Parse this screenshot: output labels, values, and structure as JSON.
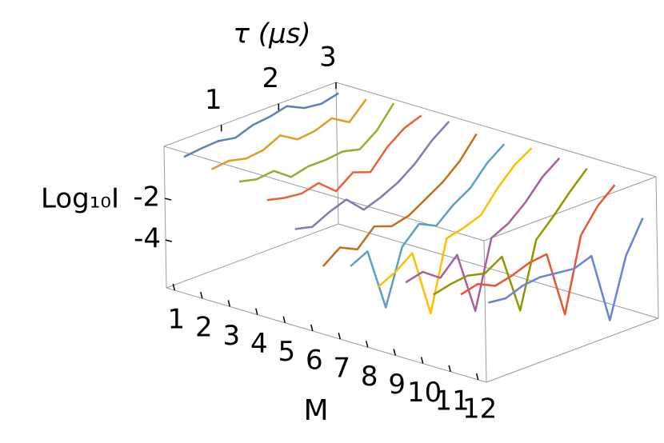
{
  "chart_data": {
    "type": "line3d",
    "x_label": "τ (μs)",
    "y_label": "M",
    "z_label": "Log₁₀I",
    "x": [
      0.2,
      0.5,
      0.8,
      1.1,
      1.4,
      1.7,
      2.0,
      2.3,
      2.6,
      2.9
    ],
    "xlim": [
      0,
      3
    ],
    "xticks": [
      1,
      2,
      3
    ],
    "categories": [
      "1",
      "2",
      "3",
      "4",
      "5",
      "6",
      "7",
      "8",
      "9",
      "10",
      "11",
      "12"
    ],
    "zlim": [
      -6.3,
      0.5
    ],
    "zticks": [
      -2,
      -4
    ],
    "series": [
      {
        "color": "#5e81b5",
        "values": [
          -0.1,
          0,
          0.05,
          -0.1,
          0.2,
          0.3,
          0.5,
          0.1,
          0.0,
          0.2
        ]
      },
      {
        "color": "#e19c24",
        "values": [
          -0.3,
          -0.2,
          -0.4,
          -0.3,
          0.1,
          -0.4,
          -0.3,
          0.0,
          -0.5,
          0.3
        ]
      },
      {
        "color": "#8fb032",
        "values": [
          -0.5,
          -0.7,
          -0.6,
          -1.2,
          -1.0,
          -1.0,
          -0.9,
          -1.1,
          -0.5,
          0.5
        ]
      },
      {
        "color": "#eb6235",
        "values": [
          -1.0,
          -1.2,
          -1.3,
          -1.1,
          -1.8,
          -1.2,
          -1.5,
          -0.6,
          0.0,
          0.3
        ]
      },
      {
        "color": "#8778b3",
        "values": [
          -2.0,
          -2.2,
          -1.8,
          -1.5,
          -2.3,
          -2.0,
          -1.6,
          -1.0,
          -0.2,
          0.4
        ]
      },
      {
        "color": "#c56e1a",
        "values": [
          -3.4,
          -2.8,
          -3.2,
          -2.4,
          -2.7,
          -2.5,
          -2.0,
          -1.5,
          -0.8,
          0.2
        ]
      },
      {
        "color": "#5d9ec7",
        "values": [
          -3.0,
          -2.6,
          -5.6,
          -3.0,
          -2.2,
          -2.6,
          -1.9,
          -1.4,
          -0.5,
          0.1
        ]
      },
      {
        "color": "#ffbf00",
        "values": [
          -3.6,
          -3.2,
          -2.6,
          -5.8,
          -2.5,
          -2.3,
          -2.0,
          -1.0,
          -0.2,
          0.3
        ]
      },
      {
        "color": "#a5609d",
        "values": [
          -3.0,
          -2.8,
          -3.4,
          -2.6,
          -5.6,
          -2.4,
          -2.0,
          -1.3,
          -0.4,
          0.2
        ]
      },
      {
        "color": "#929600",
        "values": [
          -3.2,
          -3.0,
          -2.9,
          -3.1,
          -2.6,
          -5.5,
          -2.4,
          -1.6,
          -0.7,
          0.1
        ]
      },
      {
        "color": "#e95536",
        "values": [
          -2.8,
          -2.6,
          -3.0,
          -2.8,
          -2.5,
          -2.4,
          -5.6,
          -2.1,
          -1.0,
          -0.3
        ]
      },
      {
        "color": "#6685d9",
        "values": [
          -2.8,
          -2.9,
          -2.6,
          -2.5,
          -2.6,
          -2.7,
          -2.4,
          -5.8,
          -3.0,
          -1.5
        ]
      }
    ]
  }
}
